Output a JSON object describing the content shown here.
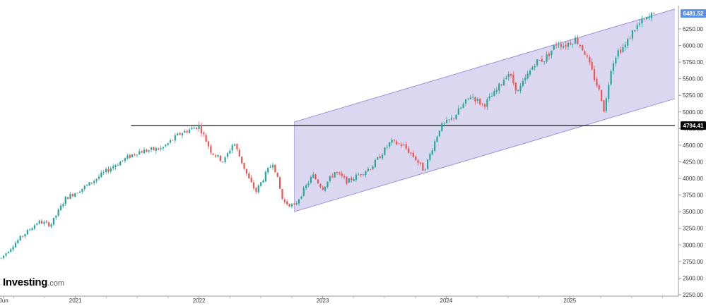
{
  "brand": {
    "name": "Investing",
    "suffix": ".com"
  },
  "colors": {
    "up": "#26a69a",
    "down": "#ef5350",
    "channel_fill": "#d6d0ee",
    "channel_line": "#9c8fd6",
    "hline": "#000000",
    "price_badge": "#5c8ee6",
    "level_badge": "#000000"
  },
  "chart_data": {
    "type": "candlestick",
    "title": "",
    "xlabel": "",
    "ylabel": "",
    "y_axis_position": "right",
    "grid": false,
    "x_range": [
      2020.39,
      2025.85
    ],
    "ylim": [
      2250,
      6600
    ],
    "y_ticks": [
      "2250.00",
      "2500.00",
      "2750.00",
      "3000.00",
      "3250.00",
      "3500.00",
      "3750.00",
      "4000.00",
      "4250.00",
      "4500.00",
      "4750.00",
      "5000.00",
      "5250.00",
      "5500.00",
      "5750.00",
      "6000.00",
      "6250.00"
    ],
    "x_ticks": [
      {
        "label": "Jun",
        "x": 2020.42
      },
      {
        "label": "2021",
        "x": 2021.0
      },
      {
        "label": "2022",
        "x": 2022.0
      },
      {
        "label": "2023",
        "x": 2023.0
      },
      {
        "label": "2024",
        "x": 2024.0
      },
      {
        "label": "2025",
        "x": 2025.0
      }
    ],
    "last_price": {
      "label": "6481.52",
      "value": 6481.52
    },
    "horizontal_level": {
      "label": "4794.41",
      "value": 4794.41,
      "x_start": 2021.45
    },
    "channel": {
      "lower": [
        [
          2022.77,
          3500
        ],
        [
          2025.85,
          5200
        ]
      ],
      "upper": [
        [
          2022.77,
          4850
        ],
        [
          2025.85,
          6550
        ]
      ]
    },
    "anchors": [
      [
        2020.4,
        2800
      ],
      [
        2020.55,
        3100
      ],
      [
        2020.7,
        3350
      ],
      [
        2020.8,
        3300
      ],
      [
        2020.92,
        3700
      ],
      [
        2021.1,
        3900
      ],
      [
        2021.3,
        4180
      ],
      [
        2021.5,
        4400
      ],
      [
        2021.7,
        4450
      ],
      [
        2021.85,
        4680
      ],
      [
        2022.0,
        4794
      ],
      [
        2022.1,
        4400
      ],
      [
        2022.2,
        4250
      ],
      [
        2022.28,
        4550
      ],
      [
        2022.4,
        4000
      ],
      [
        2022.46,
        3800
      ],
      [
        2022.55,
        4100
      ],
      [
        2022.6,
        4250
      ],
      [
        2022.68,
        3650
      ],
      [
        2022.77,
        3580
      ],
      [
        2022.92,
        4050
      ],
      [
        2023.0,
        3850
      ],
      [
        2023.1,
        4100
      ],
      [
        2023.2,
        3950
      ],
      [
        2023.4,
        4180
      ],
      [
        2023.55,
        4550
      ],
      [
        2023.65,
        4500
      ],
      [
        2023.75,
        4300
      ],
      [
        2023.82,
        4117
      ],
      [
        2023.95,
        4770
      ],
      [
        2024.05,
        4900
      ],
      [
        2024.2,
        5250
      ],
      [
        2024.3,
        5100
      ],
      [
        2024.4,
        5300
      ],
      [
        2024.5,
        5600
      ],
      [
        2024.58,
        5300
      ],
      [
        2024.72,
        5750
      ],
      [
        2024.8,
        5800
      ],
      [
        2024.9,
        6050
      ],
      [
        2024.95,
        6000
      ],
      [
        2025.05,
        6100
      ],
      [
        2025.12,
        5900
      ],
      [
        2025.18,
        5600
      ],
      [
        2025.25,
        5250
      ],
      [
        2025.28,
        5000
      ],
      [
        2025.33,
        5650
      ],
      [
        2025.38,
        5900
      ],
      [
        2025.45,
        6000
      ],
      [
        2025.52,
        6250
      ],
      [
        2025.58,
        6350
      ],
      [
        2025.63,
        6400
      ],
      [
        2025.68,
        6481.52
      ]
    ],
    "candle_count": 275
  }
}
